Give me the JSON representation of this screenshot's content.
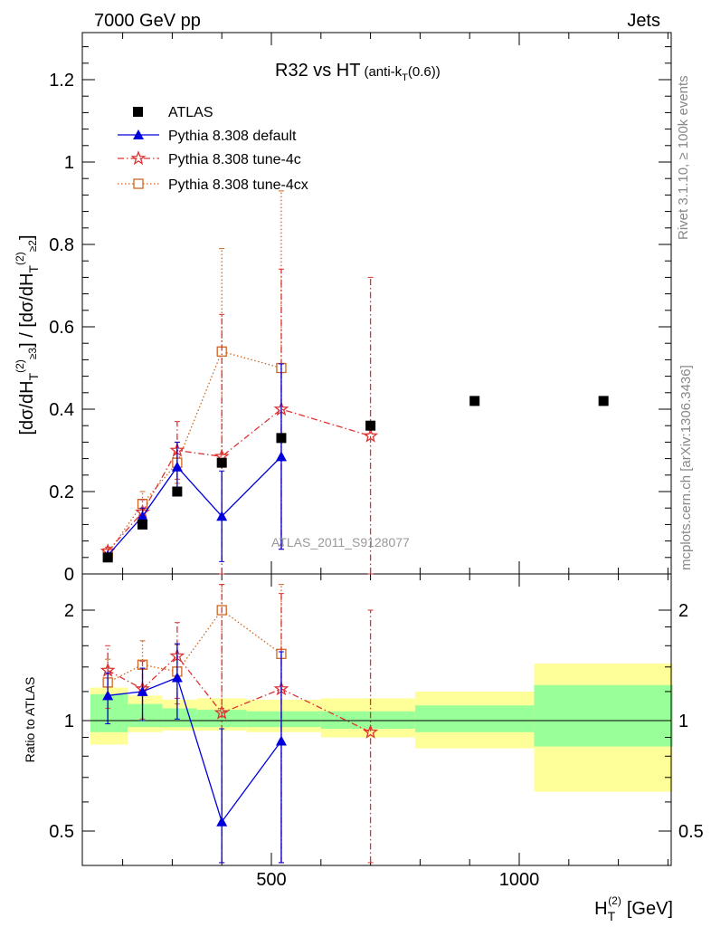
{
  "header": {
    "left": "7000 GeV pp",
    "right": "Jets"
  },
  "plot_title": {
    "main": "R32 vs HT",
    "sub_a": "(anti-k",
    "sub_sub": "T",
    "sub_b": "(0.6))"
  },
  "side_labels": {
    "rivet": "Rivet 3.1.10, ≥ 100k events",
    "mcplots": "mcplots.cern.ch [arXiv:1306.3436]"
  },
  "watermark": "ATLAS_2011_S9128077",
  "colors": {
    "atlas": "#000000",
    "default": "#0000dd",
    "tune4c": "#dd3333",
    "tune4cx": "#cc6622",
    "band_green": "#99ff99",
    "band_yellow": "#ffff99"
  },
  "chart_data": [
    {
      "type": "scatter",
      "ylabel": "[dσ/dH_T^(2)]_{≥3} / [dσ/dH_T^(2)]_{≥2}",
      "ylim": [
        0,
        1.32
      ],
      "yticks": [
        0,
        0.2,
        0.4,
        0.6,
        0.8,
        1,
        1.2
      ],
      "ytick_labels": [
        "0",
        "0.2",
        "0.4",
        "0.6",
        "0.8",
        "1",
        "1.2"
      ],
      "xlim": [
        130,
        1320
      ],
      "legend_position": "top-left",
      "series": [
        {
          "name": "ATLAS",
          "style": "points",
          "x": [
            170,
            240,
            310,
            400,
            520,
            700,
            910,
            1170
          ],
          "y": [
            0.04,
            0.12,
            0.2,
            0.27,
            0.33,
            0.36,
            0.42,
            0.42
          ],
          "yerr": [
            0.005,
            0.005,
            0.006,
            0.008,
            0.01,
            0.012,
            0.012,
            0.012
          ]
        },
        {
          "name": "Pythia 8.308 default",
          "style": "line-triangle",
          "x": [
            170,
            240,
            310,
            400,
            520
          ],
          "y": [
            0.045,
            0.14,
            0.26,
            0.14,
            0.285
          ],
          "ylo": [
            0.04,
            0.12,
            0.2,
            0.03,
            0.06
          ],
          "yhi": [
            0.05,
            0.16,
            0.32,
            0.25,
            0.51
          ]
        },
        {
          "name": "Pythia 8.308 tune-4c",
          "style": "dashdot-star",
          "x": [
            170,
            240,
            310,
            400,
            520,
            700
          ],
          "y": [
            0.055,
            0.15,
            0.3,
            0.285,
            0.4,
            0.335
          ],
          "ylo": [
            0.045,
            0.12,
            0.23,
            0.0,
            0.06,
            0.0
          ],
          "yhi": [
            0.065,
            0.18,
            0.37,
            0.63,
            0.74,
            0.72
          ]
        },
        {
          "name": "Pythia 8.308 tune-4cx",
          "style": "dotted-square",
          "x": [
            170,
            240,
            310,
            400,
            520
          ],
          "y": [
            0.05,
            0.17,
            0.27,
            0.54,
            0.5
          ],
          "ylo": [
            0.04,
            0.14,
            0.22,
            0.29,
            0.07
          ],
          "yhi": [
            0.06,
            0.2,
            0.32,
            0.79,
            0.93
          ]
        }
      ]
    },
    {
      "type": "scatter",
      "ylabel": "Ratio to ATLAS",
      "yscale": "log",
      "ylim": [
        0.41,
        2.35
      ],
      "yticks": [
        0.5,
        1,
        2
      ],
      "ytick_labels": [
        "0.5",
        "1",
        "2"
      ],
      "xlabel": "H_T^(2) [GeV]",
      "xlim": [
        130,
        1320
      ],
      "xticks": [
        500,
        1000
      ],
      "xtick_labels": [
        "500",
        "1000"
      ],
      "bands": [
        {
          "x0": 135,
          "x1": 210,
          "green": [
            0.93,
            1.18
          ],
          "yellow": [
            0.86,
            1.23
          ]
        },
        {
          "x0": 210,
          "x1": 280,
          "green": [
            0.96,
            1.11
          ],
          "yellow": [
            0.93,
            1.17
          ]
        },
        {
          "x0": 280,
          "x1": 350,
          "green": [
            0.96,
            1.08
          ],
          "yellow": [
            0.94,
            1.14
          ]
        },
        {
          "x0": 350,
          "x1": 450,
          "green": [
            0.96,
            1.07
          ],
          "yellow": [
            0.94,
            1.15
          ]
        },
        {
          "x0": 450,
          "x1": 600,
          "green": [
            0.96,
            1.06
          ],
          "yellow": [
            0.93,
            1.14
          ]
        },
        {
          "x0": 600,
          "x1": 790,
          "green": [
            0.95,
            1.06
          ],
          "yellow": [
            0.9,
            1.15
          ]
        },
        {
          "x0": 790,
          "x1": 1030,
          "green": [
            0.93,
            1.1
          ],
          "yellow": [
            0.84,
            1.2
          ]
        },
        {
          "x0": 1030,
          "x1": 1310,
          "green": [
            0.85,
            1.25
          ],
          "yellow": [
            0.64,
            1.43
          ]
        }
      ],
      "series": [
        {
          "name": "Pythia 8.308 default",
          "style": "line-triangle",
          "x": [
            170,
            240,
            310,
            400,
            520
          ],
          "y": [
            1.17,
            1.2,
            1.31,
            0.53,
            0.88
          ],
          "ylo": [
            0.98,
            1.0,
            1.01,
            0.41,
            0.41
          ],
          "yhi": [
            1.35,
            1.39,
            1.62,
            0.95,
            1.54
          ]
        },
        {
          "name": "Pythia 8.308 tune-4c",
          "style": "dashdot-star",
          "x": [
            170,
            240,
            310,
            400,
            520,
            700
          ],
          "y": [
            1.37,
            1.22,
            1.5,
            1.05,
            1.22,
            0.93
          ],
          "ylo": [
            1.15,
            1.01,
            1.15,
            0.41,
            0.41,
            0.41
          ],
          "yhi": [
            1.6,
            1.45,
            1.85,
            2.35,
            2.22,
            2.0
          ]
        },
        {
          "name": "Pythia 8.308 tune-4cx",
          "style": "dotted-square",
          "x": [
            170,
            240,
            310,
            400,
            520
          ],
          "y": [
            1.27,
            1.42,
            1.36,
            2.0,
            1.52
          ],
          "ylo": [
            1.08,
            1.19,
            1.11,
            1.08,
            0.41
          ],
          "yhi": [
            1.47,
            1.65,
            1.61,
            2.35,
            2.35
          ]
        }
      ]
    }
  ]
}
